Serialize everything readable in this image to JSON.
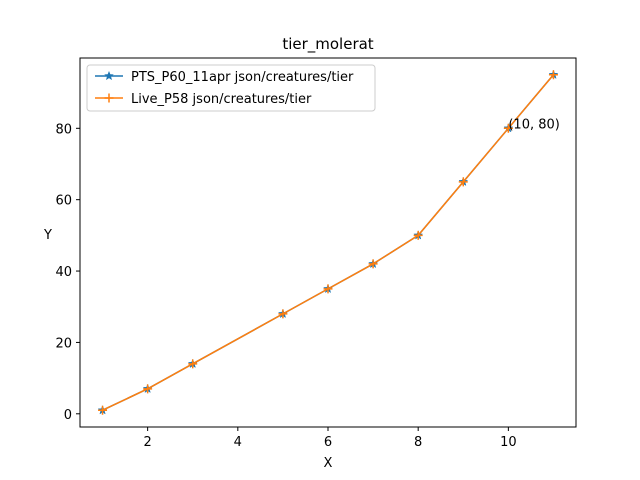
{
  "chart_data": {
    "type": "line",
    "title": "tier_molerat",
    "xlabel": "X",
    "ylabel": "Y",
    "xlim": [
      0.5,
      11.5
    ],
    "ylim": [
      -3.7,
      99.7
    ],
    "xticks": [
      2,
      4,
      6,
      8,
      10
    ],
    "yticks": [
      0,
      20,
      40,
      60,
      80
    ],
    "grid": false,
    "legend_position": "top-left",
    "series": [
      {
        "name": "PTS_P60_11apr json/creatures/tier",
        "color": "#1f77b4",
        "marker": "star",
        "x": [
          1,
          2,
          3,
          5,
          6,
          7,
          8,
          9,
          10,
          11
        ],
        "y": [
          1,
          7,
          14,
          28,
          35,
          42,
          50,
          65,
          80,
          95
        ]
      },
      {
        "name": "Live_P58 json/creatures/tier",
        "color": "#ff7f0e",
        "marker": "plus",
        "x": [
          1,
          2,
          3,
          5,
          6,
          7,
          8,
          9,
          10,
          11
        ],
        "y": [
          1,
          7,
          14,
          28,
          35,
          42,
          50,
          65,
          80,
          95
        ]
      }
    ],
    "annotations": [
      {
        "text": "(10, 80)",
        "x": 10,
        "y": 80
      }
    ]
  }
}
